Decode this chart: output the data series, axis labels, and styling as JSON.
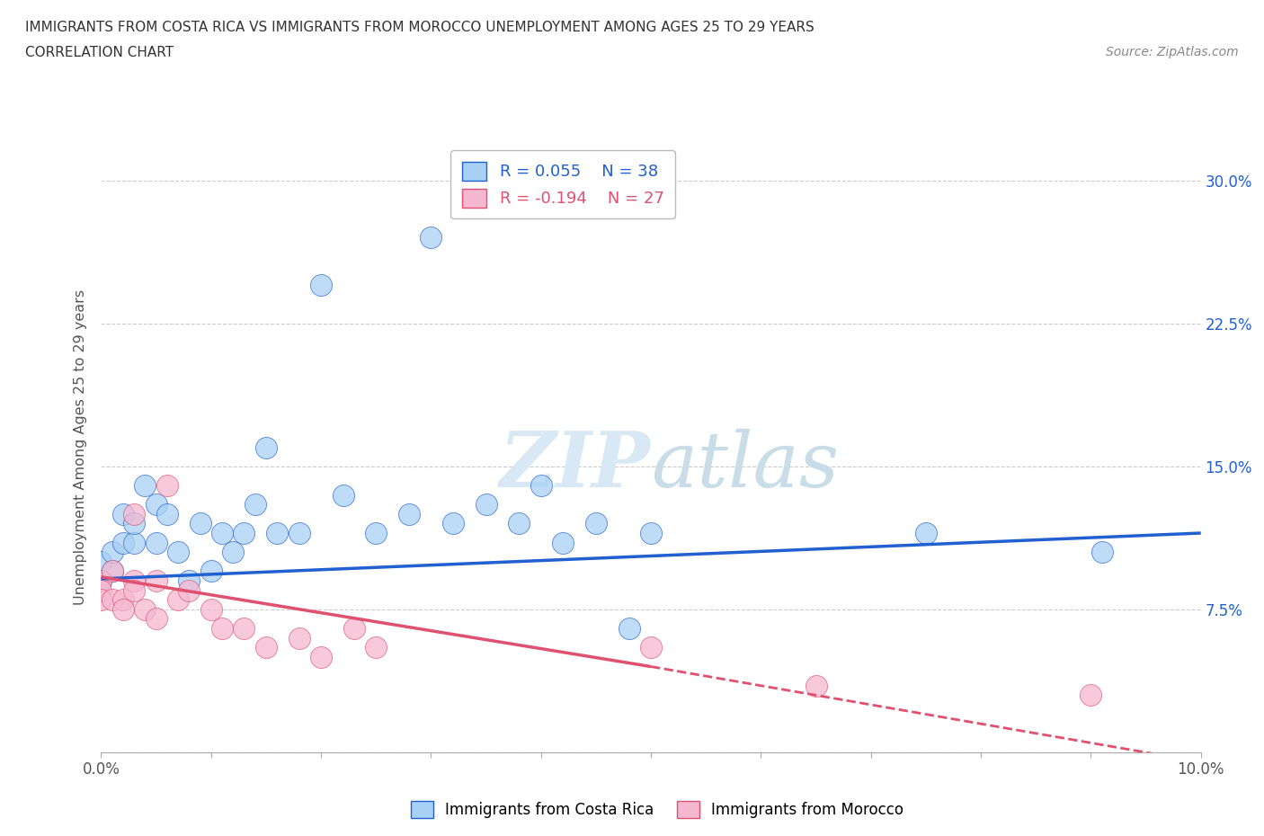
{
  "title_line1": "IMMIGRANTS FROM COSTA RICA VS IMMIGRANTS FROM MOROCCO UNEMPLOYMENT AMONG AGES 25 TO 29 YEARS",
  "title_line2": "CORRELATION CHART",
  "source": "Source: ZipAtlas.com",
  "ylabel": "Unemployment Among Ages 25 to 29 years",
  "xlim": [
    0.0,
    0.1
  ],
  "ylim": [
    0.0,
    0.32
  ],
  "xticks": [
    0.0,
    0.01,
    0.02,
    0.03,
    0.04,
    0.05,
    0.06,
    0.07,
    0.08,
    0.09,
    0.1
  ],
  "xtick_labels_sparse": {
    "0": "0.0%",
    "10": "10.0%"
  },
  "yticks": [
    0.0,
    0.075,
    0.15,
    0.225,
    0.3
  ],
  "ytick_labels": [
    "",
    "7.5%",
    "15.0%",
    "22.5%",
    "30.0%"
  ],
  "r_costa_rica": 0.055,
  "n_costa_rica": 38,
  "r_morocco": -0.194,
  "n_morocco": 27,
  "color_costa_rica": "#A8D0F5",
  "color_morocco": "#F5B8D0",
  "line_color_costa_rica": "#2060D0",
  "line_color_morocco": "#E05070",
  "watermark_color": "#d8e8f5",
  "costa_rica_x": [
    0.0,
    0.0,
    0.001,
    0.001,
    0.002,
    0.002,
    0.003,
    0.003,
    0.004,
    0.005,
    0.005,
    0.006,
    0.007,
    0.008,
    0.009,
    0.01,
    0.011,
    0.012,
    0.013,
    0.014,
    0.015,
    0.016,
    0.018,
    0.02,
    0.022,
    0.025,
    0.028,
    0.03,
    0.032,
    0.035,
    0.038,
    0.04,
    0.042,
    0.045,
    0.048,
    0.05,
    0.075,
    0.091
  ],
  "costa_rica_y": [
    0.09,
    0.1,
    0.095,
    0.105,
    0.11,
    0.125,
    0.11,
    0.12,
    0.14,
    0.13,
    0.11,
    0.125,
    0.105,
    0.09,
    0.12,
    0.095,
    0.115,
    0.105,
    0.115,
    0.13,
    0.16,
    0.115,
    0.115,
    0.245,
    0.135,
    0.115,
    0.125,
    0.27,
    0.12,
    0.13,
    0.12,
    0.14,
    0.11,
    0.12,
    0.065,
    0.115,
    0.115,
    0.105
  ],
  "morocco_x": [
    0.0,
    0.0,
    0.0,
    0.001,
    0.001,
    0.002,
    0.002,
    0.003,
    0.003,
    0.003,
    0.004,
    0.005,
    0.005,
    0.006,
    0.007,
    0.008,
    0.01,
    0.011,
    0.013,
    0.015,
    0.018,
    0.02,
    0.023,
    0.025,
    0.05,
    0.065,
    0.09
  ],
  "morocco_y": [
    0.09,
    0.085,
    0.08,
    0.095,
    0.08,
    0.08,
    0.075,
    0.09,
    0.085,
    0.125,
    0.075,
    0.09,
    0.07,
    0.14,
    0.08,
    0.085,
    0.075,
    0.065,
    0.065,
    0.055,
    0.06,
    0.05,
    0.065,
    0.055,
    0.055,
    0.035,
    0.03
  ],
  "cr_line_x0": 0.0,
  "cr_line_x1": 0.1,
  "cr_line_y0": 0.091,
  "cr_line_y1": 0.115,
  "mo_line_x0": 0.0,
  "mo_line_x1": 0.05,
  "mo_line_x1_dash": 0.1,
  "mo_line_y0": 0.092,
  "mo_line_y1": 0.045,
  "mo_line_y1_dash": -0.005
}
